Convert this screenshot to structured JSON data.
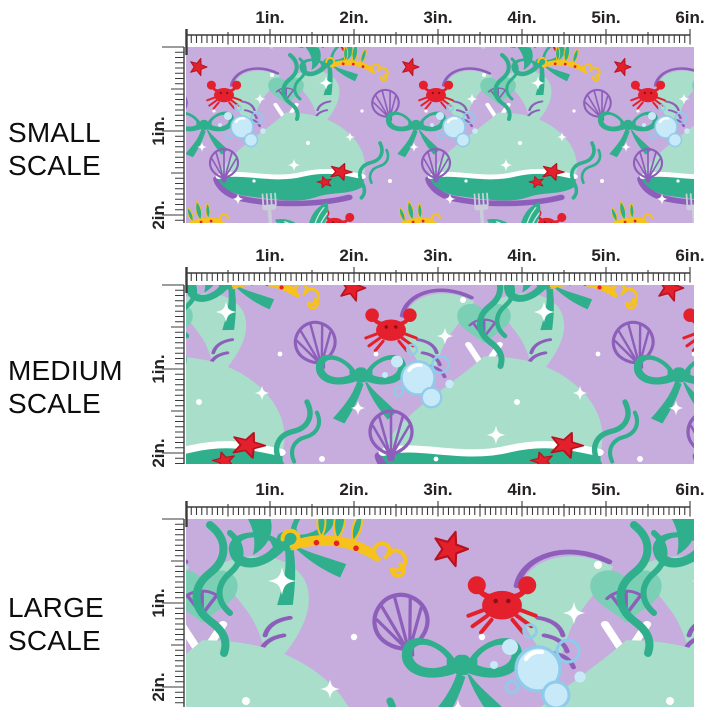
{
  "graphic_type": "fabric pattern scale comparison chart",
  "panels": [
    {
      "id": "small",
      "label": "SMALL SCALE",
      "relative_scale": 1.0
    },
    {
      "id": "medium",
      "label": "MEDIUM SCALE",
      "relative_scale": 1.5
    },
    {
      "id": "large",
      "label": "LARGE SCALE",
      "relative_scale": 2.0
    }
  ],
  "ruler": {
    "inch_labels": [
      "1in.",
      "2in.",
      "3in.",
      "4in.",
      "5in.",
      "6in."
    ],
    "side_labels": [
      "1in.",
      "2in."
    ],
    "ticks_per_inch": 16,
    "shown_width_inches": 6,
    "shown_height_inches": 2
  },
  "pattern": {
    "theme": "mermaid fabric print on lavender",
    "motifs": [
      "mermaid-with-flowing-hair",
      "mermaid-tail",
      "ribbon-bow",
      "crab",
      "starfish",
      "scallop-shell",
      "bubbles",
      "tiara-crown",
      "fork",
      "seaweed",
      "sparkle",
      "gold-swirl"
    ],
    "colors": {
      "background_lavender": "#C6ADDE",
      "mint": "#A8DECA",
      "green": "#2FAF8C",
      "teal_heart": "#7BCFB5",
      "purple_accent": "#8E5FBA",
      "red": "#E3202C",
      "red_outline": "#B8121F",
      "gold": "#F6C21B",
      "bubble_fill": "#C8E9F8",
      "bubble_stroke": "#8FCBEA",
      "fork_gray": "#C9CED8",
      "white": "#FFFFFF",
      "ruler_tick": "#3A3A3A",
      "label_text": "#262223"
    }
  }
}
